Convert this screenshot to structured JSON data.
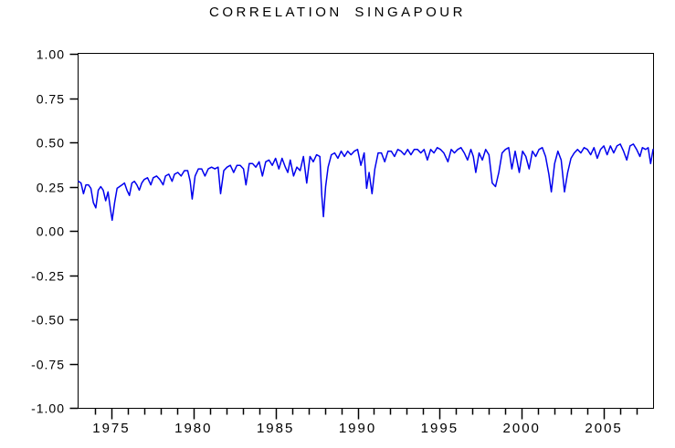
{
  "chart_data": {
    "type": "line",
    "title": "CORRELATION SINGAPOUR",
    "xlabel": "",
    "ylabel": "",
    "x_range": [
      1973,
      2008
    ],
    "ylim": [
      -1.0,
      1.0
    ],
    "grid": false,
    "legend": "none",
    "x_minor_tick_step_years": 1,
    "x_major_tick_every_years": 5,
    "x_ticks_labeled": [
      1975,
      1980,
      1985,
      1990,
      1995,
      2000,
      2005
    ],
    "x_tick_labels": [
      "1975",
      "1980",
      "1985",
      "1990",
      "1995",
      "2000",
      "2005"
    ],
    "y_ticks": [
      1.0,
      0.75,
      0.5,
      0.25,
      0.0,
      -0.25,
      -0.5,
      -0.75,
      -1.0
    ],
    "y_tick_labels": [
      "1.00",
      "0.75",
      "0.50",
      "0.25",
      "0.00",
      "-0.25",
      "-0.50",
      "-0.75",
      "-1.00"
    ],
    "colors": {
      "line": "#0000EE",
      "axis": "#000000",
      "text": "#000000",
      "background": "#FFFFFF"
    },
    "series": [
      {
        "name": "CORRELATION SINGAPOUR",
        "color": "#0000EE",
        "points": [
          [
            1973.0,
            0.28
          ],
          [
            1973.15,
            0.27
          ],
          [
            1973.3,
            0.21
          ],
          [
            1973.45,
            0.26
          ],
          [
            1973.6,
            0.26
          ],
          [
            1973.75,
            0.24
          ],
          [
            1973.9,
            0.16
          ],
          [
            1974.05,
            0.13
          ],
          [
            1974.2,
            0.23
          ],
          [
            1974.35,
            0.25
          ],
          [
            1974.5,
            0.23
          ],
          [
            1974.65,
            0.17
          ],
          [
            1974.8,
            0.22
          ],
          [
            1974.95,
            0.12
          ],
          [
            1975.05,
            0.06
          ],
          [
            1975.2,
            0.16
          ],
          [
            1975.35,
            0.24
          ],
          [
            1975.5,
            0.25
          ],
          [
            1975.65,
            0.26
          ],
          [
            1975.8,
            0.27
          ],
          [
            1975.95,
            0.23
          ],
          [
            1976.1,
            0.2
          ],
          [
            1976.25,
            0.27
          ],
          [
            1976.4,
            0.28
          ],
          [
            1976.55,
            0.26
          ],
          [
            1976.7,
            0.23
          ],
          [
            1976.85,
            0.27
          ],
          [
            1977.0,
            0.29
          ],
          [
            1977.2,
            0.3
          ],
          [
            1977.4,
            0.26
          ],
          [
            1977.55,
            0.3
          ],
          [
            1977.75,
            0.31
          ],
          [
            1977.95,
            0.29
          ],
          [
            1978.15,
            0.26
          ],
          [
            1978.3,
            0.31
          ],
          [
            1978.5,
            0.32
          ],
          [
            1978.7,
            0.28
          ],
          [
            1978.85,
            0.32
          ],
          [
            1979.05,
            0.33
          ],
          [
            1979.25,
            0.31
          ],
          [
            1979.45,
            0.34
          ],
          [
            1979.65,
            0.34
          ],
          [
            1979.8,
            0.28
          ],
          [
            1979.92,
            0.18
          ],
          [
            1980.1,
            0.31
          ],
          [
            1980.3,
            0.35
          ],
          [
            1980.5,
            0.35
          ],
          [
            1980.7,
            0.31
          ],
          [
            1980.9,
            0.35
          ],
          [
            1981.1,
            0.36
          ],
          [
            1981.3,
            0.35
          ],
          [
            1981.5,
            0.36
          ],
          [
            1981.65,
            0.21
          ],
          [
            1981.85,
            0.34
          ],
          [
            1982.05,
            0.36
          ],
          [
            1982.25,
            0.37
          ],
          [
            1982.45,
            0.33
          ],
          [
            1982.65,
            0.37
          ],
          [
            1982.85,
            0.37
          ],
          [
            1983.05,
            0.35
          ],
          [
            1983.2,
            0.26
          ],
          [
            1983.4,
            0.38
          ],
          [
            1983.6,
            0.38
          ],
          [
            1983.8,
            0.36
          ],
          [
            1984.0,
            0.39
          ],
          [
            1984.2,
            0.31
          ],
          [
            1984.4,
            0.39
          ],
          [
            1984.6,
            0.4
          ],
          [
            1984.8,
            0.37
          ],
          [
            1985.0,
            0.41
          ],
          [
            1985.2,
            0.35
          ],
          [
            1985.4,
            0.41
          ],
          [
            1985.6,
            0.36
          ],
          [
            1985.75,
            0.33
          ],
          [
            1985.9,
            0.4
          ],
          [
            1986.1,
            0.31
          ],
          [
            1986.3,
            0.36
          ],
          [
            1986.5,
            0.34
          ],
          [
            1986.7,
            0.42
          ],
          [
            1986.9,
            0.27
          ],
          [
            1987.1,
            0.42
          ],
          [
            1987.3,
            0.39
          ],
          [
            1987.5,
            0.43
          ],
          [
            1987.7,
            0.42
          ],
          [
            1987.82,
            0.2
          ],
          [
            1987.92,
            0.08
          ],
          [
            1988.05,
            0.25
          ],
          [
            1988.2,
            0.36
          ],
          [
            1988.4,
            0.43
          ],
          [
            1988.6,
            0.44
          ],
          [
            1988.8,
            0.41
          ],
          [
            1989.0,
            0.45
          ],
          [
            1989.2,
            0.42
          ],
          [
            1989.4,
            0.45
          ],
          [
            1989.6,
            0.43
          ],
          [
            1989.8,
            0.45
          ],
          [
            1990.0,
            0.46
          ],
          [
            1990.2,
            0.37
          ],
          [
            1990.4,
            0.44
          ],
          [
            1990.55,
            0.24
          ],
          [
            1990.7,
            0.33
          ],
          [
            1990.88,
            0.21
          ],
          [
            1991.05,
            0.35
          ],
          [
            1991.25,
            0.44
          ],
          [
            1991.45,
            0.44
          ],
          [
            1991.65,
            0.39
          ],
          [
            1991.85,
            0.45
          ],
          [
            1992.05,
            0.45
          ],
          [
            1992.25,
            0.42
          ],
          [
            1992.45,
            0.46
          ],
          [
            1992.65,
            0.45
          ],
          [
            1992.85,
            0.43
          ],
          [
            1993.05,
            0.46
          ],
          [
            1993.25,
            0.43
          ],
          [
            1993.45,
            0.46
          ],
          [
            1993.65,
            0.46
          ],
          [
            1993.85,
            0.44
          ],
          [
            1994.05,
            0.46
          ],
          [
            1994.25,
            0.4
          ],
          [
            1994.45,
            0.46
          ],
          [
            1994.65,
            0.44
          ],
          [
            1994.85,
            0.47
          ],
          [
            1995.05,
            0.46
          ],
          [
            1995.25,
            0.44
          ],
          [
            1995.5,
            0.39
          ],
          [
            1995.7,
            0.46
          ],
          [
            1995.9,
            0.44
          ],
          [
            1996.1,
            0.46
          ],
          [
            1996.3,
            0.47
          ],
          [
            1996.5,
            0.44
          ],
          [
            1996.7,
            0.4
          ],
          [
            1996.9,
            0.46
          ],
          [
            1997.05,
            0.42
          ],
          [
            1997.2,
            0.33
          ],
          [
            1997.4,
            0.44
          ],
          [
            1997.6,
            0.4
          ],
          [
            1997.8,
            0.46
          ],
          [
            1998.0,
            0.43
          ],
          [
            1998.2,
            0.27
          ],
          [
            1998.4,
            0.25
          ],
          [
            1998.6,
            0.33
          ],
          [
            1998.8,
            0.44
          ],
          [
            1999.0,
            0.46
          ],
          [
            1999.2,
            0.47
          ],
          [
            1999.4,
            0.35
          ],
          [
            1999.6,
            0.45
          ],
          [
            1999.85,
            0.33
          ],
          [
            2000.05,
            0.45
          ],
          [
            2000.25,
            0.42
          ],
          [
            2000.45,
            0.35
          ],
          [
            2000.65,
            0.45
          ],
          [
            2000.85,
            0.42
          ],
          [
            2001.05,
            0.46
          ],
          [
            2001.25,
            0.47
          ],
          [
            2001.45,
            0.42
          ],
          [
            2001.65,
            0.32
          ],
          [
            2001.8,
            0.22
          ],
          [
            2002.0,
            0.38
          ],
          [
            2002.2,
            0.45
          ],
          [
            2002.4,
            0.4
          ],
          [
            2002.6,
            0.22
          ],
          [
            2002.8,
            0.33
          ],
          [
            2003.0,
            0.41
          ],
          [
            2003.2,
            0.44
          ],
          [
            2003.4,
            0.46
          ],
          [
            2003.6,
            0.44
          ],
          [
            2003.8,
            0.47
          ],
          [
            2004.0,
            0.46
          ],
          [
            2004.2,
            0.43
          ],
          [
            2004.4,
            0.47
          ],
          [
            2004.6,
            0.41
          ],
          [
            2004.8,
            0.46
          ],
          [
            2005.0,
            0.48
          ],
          [
            2005.2,
            0.43
          ],
          [
            2005.4,
            0.48
          ],
          [
            2005.6,
            0.44
          ],
          [
            2005.8,
            0.48
          ],
          [
            2006.0,
            0.49
          ],
          [
            2006.2,
            0.45
          ],
          [
            2006.4,
            0.4
          ],
          [
            2006.6,
            0.48
          ],
          [
            2006.8,
            0.49
          ],
          [
            2007.0,
            0.46
          ],
          [
            2007.2,
            0.42
          ],
          [
            2007.35,
            0.47
          ],
          [
            2007.55,
            0.46
          ],
          [
            2007.7,
            0.47
          ],
          [
            2007.85,
            0.38
          ],
          [
            2008.0,
            0.46
          ]
        ]
      }
    ]
  }
}
